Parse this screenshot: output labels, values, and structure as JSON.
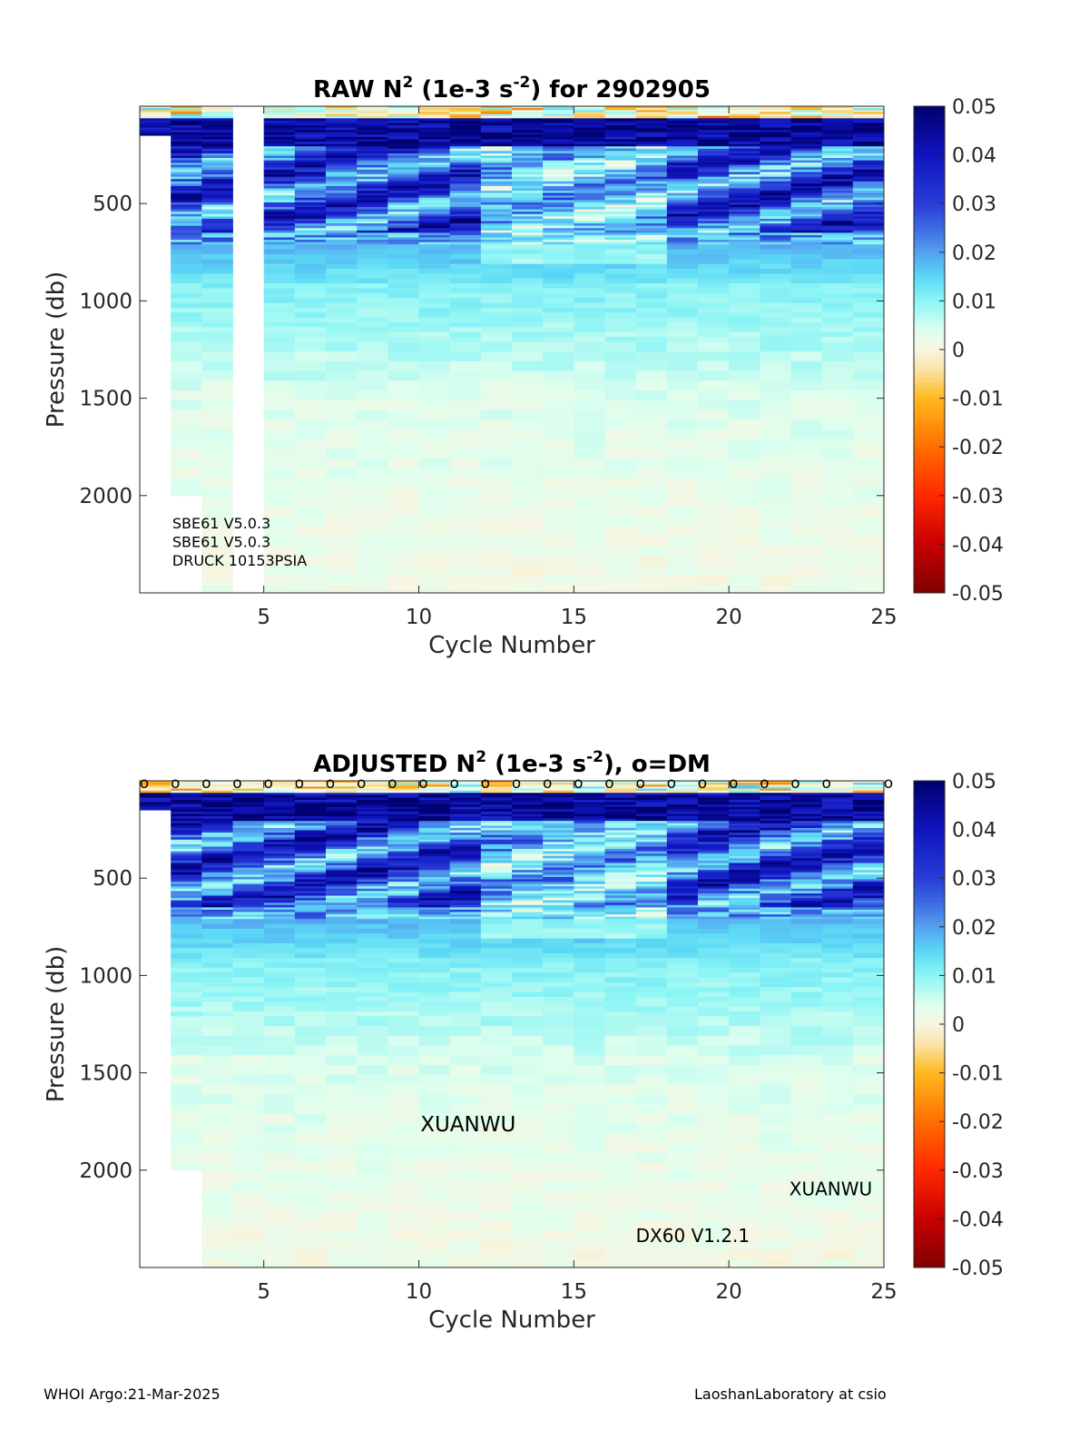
{
  "chart_data": [
    {
      "type": "heatmap",
      "title": {
        "pre": "RAW N",
        "sup1": "2",
        "mid": " (1e-3 s",
        "sup2": "-2",
        "post": ") for 2902905"
      },
      "xlabel": "Cycle Number",
      "ylabel": "Pressure (db)",
      "xlim": [
        1,
        25
      ],
      "ylim": [
        2500,
        0
      ],
      "y_reversed": true,
      "xticks": [
        5,
        10,
        15,
        20,
        25
      ],
      "yticks": [
        500,
        1000,
        1500,
        2000
      ],
      "cbar_ticks": [
        0.05,
        0.04,
        0.03,
        0.02,
        0.01,
        0,
        -0.01,
        -0.02,
        -0.03,
        -0.04,
        -0.05
      ],
      "cbar_tick_labels": [
        "0.05",
        "0.04",
        "0.03",
        "0.02",
        "0.01",
        "0",
        "-0.01",
        "-0.02",
        "-0.03",
        "-0.04",
        "-0.05"
      ],
      "clim": [
        -0.05,
        0.05
      ],
      "cycles": [
        1,
        2,
        3,
        4,
        5,
        6,
        7,
        8,
        9,
        10,
        11,
        12,
        13,
        14,
        15,
        16,
        17,
        18,
        19,
        20,
        21,
        22,
        23,
        24
      ],
      "max_pressure_by_cycle": [
        150,
        2000,
        2500,
        0,
        2500,
        2500,
        2500,
        2500,
        2500,
        2500,
        2500,
        2500,
        2500,
        2500,
        2500,
        2500,
        2500,
        2500,
        2500,
        2500,
        2500,
        2500,
        2500,
        2500
      ],
      "annotations": [
        {
          "text": "SBE61 V5.0.3",
          "x": 2.05,
          "y": 2170
        },
        {
          "text": "SBE61 V5.0.3",
          "x": 2.05,
          "y": 2265
        },
        {
          "text": "DRUCK 10153PSIA",
          "x": 2.05,
          "y": 2360
        }
      ],
      "dm_markers": false
    },
    {
      "type": "heatmap",
      "title": {
        "pre": "ADJUSTED N",
        "sup1": "2",
        "mid": " (1e-3 s",
        "sup2": "-2",
        "post": "), o=DM"
      },
      "xlabel": "Cycle Number",
      "ylabel": "Pressure (db)",
      "xlim": [
        1,
        25
      ],
      "ylim": [
        2500,
        0
      ],
      "y_reversed": true,
      "xticks": [
        5,
        10,
        15,
        20,
        25
      ],
      "yticks": [
        500,
        1000,
        1500,
        2000
      ],
      "cbar_ticks": [
        0.05,
        0.04,
        0.03,
        0.02,
        0.01,
        0,
        -0.01,
        -0.02,
        -0.03,
        -0.04,
        -0.05
      ],
      "cbar_tick_labels": [
        "0.05",
        "0.04",
        "0.03",
        "0.02",
        "0.01",
        "0",
        "-0.01",
        "-0.02",
        "-0.03",
        "-0.04",
        "-0.05"
      ],
      "clim": [
        -0.05,
        0.05
      ],
      "cycles": [
        1,
        2,
        3,
        4,
        5,
        6,
        7,
        8,
        9,
        10,
        11,
        12,
        13,
        14,
        15,
        16,
        17,
        18,
        19,
        20,
        21,
        22,
        23,
        24
      ],
      "max_pressure_by_cycle": [
        150,
        2000,
        2500,
        2500,
        2500,
        2500,
        2500,
        2500,
        2500,
        2500,
        2500,
        2500,
        2500,
        2500,
        2500,
        2500,
        2500,
        2500,
        2500,
        2500,
        2500,
        2500,
        2500,
        2500
      ],
      "annotations": [
        {
          "text": "XUANWU",
          "x": 10.05,
          "y": 1800
        },
        {
          "text": "XUANWU",
          "x": 21.95,
          "y": 2130
        },
        {
          "text": "DX60 V1.2.1",
          "x": 17.0,
          "y": 2370
        }
      ],
      "dm_marker_symbol": "o",
      "dm_cycles": [
        1,
        2,
        3,
        4,
        5,
        6,
        7,
        8,
        9,
        10,
        11,
        12,
        13,
        14,
        15,
        16,
        17,
        18,
        19,
        20,
        21,
        22,
        23,
        25
      ]
    }
  ],
  "footer": {
    "left": "WHOI Argo:21-Mar-2025",
    "right": "LaoshanLaboratory at csio"
  }
}
